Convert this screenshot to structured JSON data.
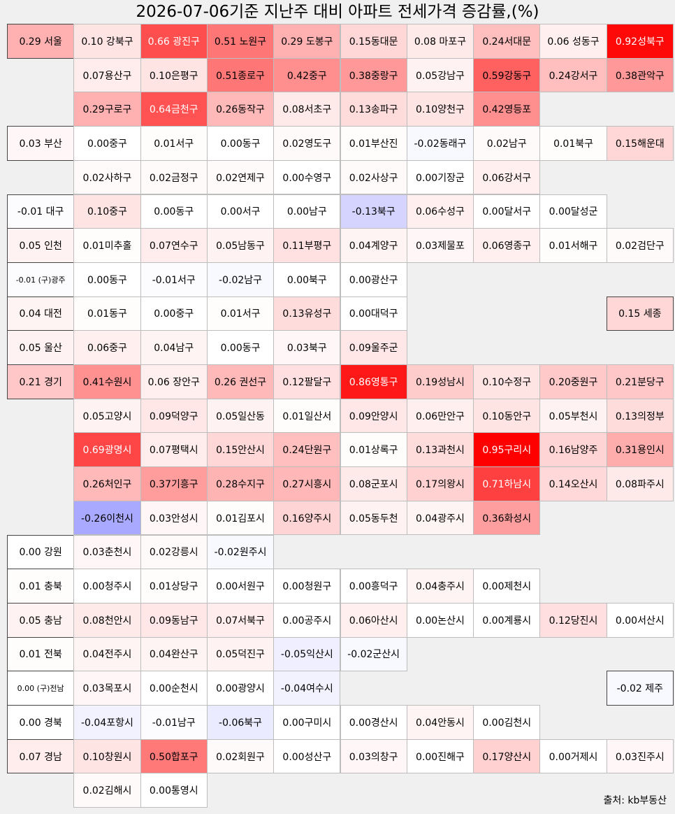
{
  "title": "2026-07-06기준 지난주 대비 아파트 전세가격 증감률,(%)",
  "source": "출처: kb부동산",
  "chart_data": {
    "type": "heatmap",
    "title": "2026-07-06기준 지난주 대비 아파트 전세가격 증감률,(%)",
    "unit": "%",
    "colors": {
      "positive": "#ff0000",
      "negative": "#3333ff",
      "zero": "#ffffff"
    },
    "groups": [
      {
        "region": {
          "label": "0.29 서울",
          "value": 0.29
        },
        "rows": [
          [
            {
              "label": "0.10 강북구",
              "value": 0.1
            },
            {
              "label": "0.66 광진구",
              "value": 0.66
            },
            {
              "label": "0.51 노원구",
              "value": 0.51
            },
            {
              "label": "0.29 도봉구",
              "value": 0.29
            },
            {
              "label": "0.15동대문",
              "value": 0.15
            },
            {
              "label": "0.08 마포구",
              "value": 0.08
            },
            {
              "label": "0.24서대문",
              "value": 0.24
            },
            {
              "label": "0.06 성동구",
              "value": 0.06
            },
            {
              "label": "0.92성북구",
              "value": 0.92
            }
          ],
          [
            {
              "label": "0.07용산구",
              "value": 0.07
            },
            {
              "label": "0.10은평구",
              "value": 0.1
            },
            {
              "label": "0.51종로구",
              "value": 0.51
            },
            {
              "label": "0.42중구",
              "value": 0.42
            },
            {
              "label": "0.38중랑구",
              "value": 0.38
            },
            {
              "label": "0.05강남구",
              "value": 0.05
            },
            {
              "label": "0.59강동구",
              "value": 0.59
            },
            {
              "label": "0.24강서구",
              "value": 0.24
            },
            {
              "label": "0.38관악구",
              "value": 0.38
            }
          ],
          [
            {
              "label": "0.29구로구",
              "value": 0.29
            },
            {
              "label": "0.64금천구",
              "value": 0.64
            },
            {
              "label": "0.26동작구",
              "value": 0.26
            },
            {
              "label": "0.08서초구",
              "value": 0.08
            },
            {
              "label": "0.13송파구",
              "value": 0.13
            },
            {
              "label": "0.10양천구",
              "value": 0.1
            },
            {
              "label": "0.42영등포",
              "value": 0.42
            }
          ]
        ]
      },
      {
        "region": {
          "label": "0.03 부산",
          "value": 0.03
        },
        "rows": [
          [
            {
              "label": "0.00중구",
              "value": 0.0
            },
            {
              "label": "0.01서구",
              "value": 0.01
            },
            {
              "label": "0.00동구",
              "value": 0.0
            },
            {
              "label": "0.02영도구",
              "value": 0.02
            },
            {
              "label": "0.01부산진",
              "value": 0.01
            },
            {
              "label": "-0.02동래구",
              "value": -0.02
            },
            {
              "label": "0.02남구",
              "value": 0.02
            },
            {
              "label": "0.01북구",
              "value": 0.01
            },
            {
              "label": "0.15해운대",
              "value": 0.15
            }
          ],
          [
            {
              "label": "0.02사하구",
              "value": 0.02
            },
            {
              "label": "0.02금정구",
              "value": 0.02
            },
            {
              "label": "0.02연제구",
              "value": 0.02
            },
            {
              "label": "0.00수영구",
              "value": 0.0
            },
            {
              "label": "0.02사상구",
              "value": 0.02
            },
            {
              "label": "0.00기장군",
              "value": 0.0
            },
            {
              "label": "0.06강서구",
              "value": 0.06
            }
          ]
        ]
      },
      {
        "region": {
          "label": "-0.01 대구",
          "value": -0.01
        },
        "rows": [
          [
            {
              "label": "0.10중구",
              "value": 0.1
            },
            {
              "label": "0.00동구",
              "value": 0.0
            },
            {
              "label": "0.00서구",
              "value": 0.0
            },
            {
              "label": "0.00남구",
              "value": 0.0
            },
            {
              "label": "-0.13북구",
              "value": -0.13
            },
            {
              "label": "0.06수성구",
              "value": 0.06
            },
            {
              "label": "0.00달서구",
              "value": 0.0
            },
            {
              "label": "0.00달성군",
              "value": 0.0
            }
          ]
        ]
      },
      {
        "region": {
          "label": "0.05 인천",
          "value": 0.05
        },
        "rows": [
          [
            {
              "label": "0.01미추홀",
              "value": 0.01
            },
            {
              "label": "0.07연수구",
              "value": 0.07
            },
            {
              "label": "0.05남동구",
              "value": 0.05
            },
            {
              "label": "0.11부평구",
              "value": 0.11
            },
            {
              "label": "0.04계양구",
              "value": 0.04
            },
            {
              "label": "0.03제물포",
              "value": 0.03
            },
            {
              "label": "0.06영종구",
              "value": 0.06
            },
            {
              "label": "0.01서해구",
              "value": 0.01
            },
            {
              "label": "0.02검단구",
              "value": 0.02
            }
          ]
        ]
      },
      {
        "region": {
          "label": "-0.01 (구)광주",
          "value": -0.01,
          "small": true
        },
        "rows": [
          [
            {
              "label": "0.00동구",
              "value": 0.0
            },
            {
              "label": "-0.01서구",
              "value": -0.01
            },
            {
              "label": "-0.02남구",
              "value": -0.02
            },
            {
              "label": "0.00북구",
              "value": 0.0
            },
            {
              "label": "0.00광산구",
              "value": 0.0
            }
          ]
        ]
      },
      {
        "region": {
          "label": "0.04 대전",
          "value": 0.04
        },
        "rows": [
          [
            {
              "label": "0.01동구",
              "value": 0.01
            },
            {
              "label": "0.00중구",
              "value": 0.0
            },
            {
              "label": "0.01서구",
              "value": 0.01
            },
            {
              "label": "0.13유성구",
              "value": 0.13
            },
            {
              "label": "0.00대덕구",
              "value": 0.0
            }
          ]
        ],
        "side": {
          "label": "0.15 세종",
          "value": 0.15
        }
      },
      {
        "region": {
          "label": "0.05 울산",
          "value": 0.05
        },
        "rows": [
          [
            {
              "label": "0.06중구",
              "value": 0.06
            },
            {
              "label": "0.04남구",
              "value": 0.04
            },
            {
              "label": "0.00동구",
              "value": 0.0
            },
            {
              "label": "0.03북구",
              "value": 0.03
            },
            {
              "label": "0.09울주군",
              "value": 0.09
            }
          ]
        ]
      },
      {
        "region": {
          "label": "0.21 경기",
          "value": 0.21
        },
        "rows": [
          [
            {
              "label": "0.41수원시",
              "value": 0.41
            },
            {
              "label": "0.06 장안구",
              "value": 0.06
            },
            {
              "label": "0.26 권선구",
              "value": 0.26
            },
            {
              "label": "0.12팔달구",
              "value": 0.12
            },
            {
              "label": "0.86영통구",
              "value": 0.86
            },
            {
              "label": "0.19성남시",
              "value": 0.19
            },
            {
              "label": "0.10수정구",
              "value": 0.1
            },
            {
              "label": "0.20중원구",
              "value": 0.2
            },
            {
              "label": "0.21분당구",
              "value": 0.21
            }
          ],
          [
            {
              "label": "0.05고양시",
              "value": 0.05
            },
            {
              "label": "0.09덕양구",
              "value": 0.09
            },
            {
              "label": "0.05일산동",
              "value": 0.05
            },
            {
              "label": "0.01일산서",
              "value": 0.01
            },
            {
              "label": "0.09안양시",
              "value": 0.09
            },
            {
              "label": "0.06만안구",
              "value": 0.06
            },
            {
              "label": "0.10동안구",
              "value": 0.1
            },
            {
              "label": "0.05부천시",
              "value": 0.05
            },
            {
              "label": "0.13의정부",
              "value": 0.13
            }
          ],
          [
            {
              "label": "0.69광명시",
              "value": 0.69
            },
            {
              "label": "0.07평택시",
              "value": 0.07
            },
            {
              "label": "0.15안산시",
              "value": 0.15
            },
            {
              "label": "0.24단원구",
              "value": 0.24
            },
            {
              "label": "0.01상록구",
              "value": 0.01
            },
            {
              "label": "0.13과천시",
              "value": 0.13
            },
            {
              "label": "0.95구리시",
              "value": 0.95
            },
            {
              "label": "0.16남양주",
              "value": 0.16
            },
            {
              "label": "0.31용인시",
              "value": 0.31
            }
          ],
          [
            {
              "label": "0.26처인구",
              "value": 0.26
            },
            {
              "label": "0.37기흥구",
              "value": 0.37
            },
            {
              "label": "0.28수지구",
              "value": 0.28
            },
            {
              "label": "0.27시흥시",
              "value": 0.27
            },
            {
              "label": "0.08군포시",
              "value": 0.08
            },
            {
              "label": "0.17의왕시",
              "value": 0.17
            },
            {
              "label": "0.71하남시",
              "value": 0.71
            },
            {
              "label": "0.14오산시",
              "value": 0.14
            },
            {
              "label": "0.08파주시",
              "value": 0.08
            }
          ],
          [
            {
              "label": "-0.26이천시",
              "value": -0.26
            },
            {
              "label": "0.03안성시",
              "value": 0.03
            },
            {
              "label": "0.01김포시",
              "value": 0.01
            },
            {
              "label": "0.16양주시",
              "value": 0.16
            },
            {
              "label": "0.05동두천",
              "value": 0.05
            },
            {
              "label": "0.04광주시",
              "value": 0.04
            },
            {
              "label": "0.36화성시",
              "value": 0.36
            }
          ]
        ]
      },
      {
        "region": {
          "label": "0.00 강원",
          "value": 0.0
        },
        "rows": [
          [
            {
              "label": "0.03춘천시",
              "value": 0.03
            },
            {
              "label": "0.02강릉시",
              "value": 0.02
            },
            {
              "label": "-0.02원주시",
              "value": -0.02
            }
          ]
        ]
      },
      {
        "region": {
          "label": "0.01 충북",
          "value": 0.01
        },
        "rows": [
          [
            {
              "label": "0.00청주시",
              "value": 0.0
            },
            {
              "label": "0.01상당구",
              "value": 0.01
            },
            {
              "label": "0.00서원구",
              "value": 0.0
            },
            {
              "label": "0.00청원구",
              "value": 0.0
            },
            {
              "label": "0.00흥덕구",
              "value": 0.0
            },
            {
              "label": "0.04충주시",
              "value": 0.04
            },
            {
              "label": "0.00제천시",
              "value": 0.0
            }
          ]
        ]
      },
      {
        "region": {
          "label": "0.05 충남",
          "value": 0.05
        },
        "rows": [
          [
            {
              "label": "0.08천안시",
              "value": 0.08
            },
            {
              "label": "0.09동남구",
              "value": 0.09
            },
            {
              "label": "0.07서북구",
              "value": 0.07
            },
            {
              "label": "0.00공주시",
              "value": 0.0
            },
            {
              "label": "0.06아산시",
              "value": 0.06
            },
            {
              "label": "0.00논산시",
              "value": 0.0
            },
            {
              "label": "0.00계룡시",
              "value": 0.0
            },
            {
              "label": "0.12당진시",
              "value": 0.12
            },
            {
              "label": "0.00서산시",
              "value": 0.0
            }
          ]
        ]
      },
      {
        "region": {
          "label": "0.01 전북",
          "value": 0.01
        },
        "rows": [
          [
            {
              "label": "0.04전주시",
              "value": 0.04
            },
            {
              "label": "0.04완산구",
              "value": 0.04
            },
            {
              "label": "0.05덕진구",
              "value": 0.05
            },
            {
              "label": "-0.05익산시",
              "value": -0.05
            },
            {
              "label": "-0.02군산시",
              "value": -0.02
            }
          ]
        ]
      },
      {
        "region": {
          "label": "0.00 (구)전남",
          "value": 0.0,
          "small": true
        },
        "rows": [
          [
            {
              "label": "0.03목포시",
              "value": 0.03
            },
            {
              "label": "0.00순천시",
              "value": 0.0
            },
            {
              "label": "0.00광양시",
              "value": 0.0
            },
            {
              "label": "-0.04여수시",
              "value": -0.04
            }
          ]
        ],
        "side": {
          "label": "-0.02 제주",
          "value": -0.02
        }
      },
      {
        "region": {
          "label": "0.00 경북",
          "value": 0.0
        },
        "rows": [
          [
            {
              "label": "-0.04포항시",
              "value": -0.04
            },
            {
              "label": "-0.01남구",
              "value": -0.01
            },
            {
              "label": "-0.06북구",
              "value": -0.06
            },
            {
              "label": "0.00구미시",
              "value": 0.0
            },
            {
              "label": "0.00경산시",
              "value": 0.0
            },
            {
              "label": "0.04안동시",
              "value": 0.04
            },
            {
              "label": "0.00김천시",
              "value": 0.0
            }
          ]
        ]
      },
      {
        "region": {
          "label": "0.07 경남",
          "value": 0.07
        },
        "rows": [
          [
            {
              "label": "0.10창원시",
              "value": 0.1
            },
            {
              "label": "0.50합포구",
              "value": 0.5
            },
            {
              "label": "0.02회원구",
              "value": 0.02
            },
            {
              "label": "0.00성산구",
              "value": 0.0
            },
            {
              "label": "0.03의창구",
              "value": 0.03
            },
            {
              "label": "0.00진해구",
              "value": 0.0
            },
            {
              "label": "0.17양산시",
              "value": 0.17
            },
            {
              "label": "0.00거제시",
              "value": 0.0
            },
            {
              "label": "0.03진주시",
              "value": 0.03
            }
          ],
          [
            {
              "label": "0.02김해시",
              "value": 0.02
            },
            {
              "label": "0.00통영시",
              "value": 0.0
            }
          ]
        ]
      }
    ]
  }
}
